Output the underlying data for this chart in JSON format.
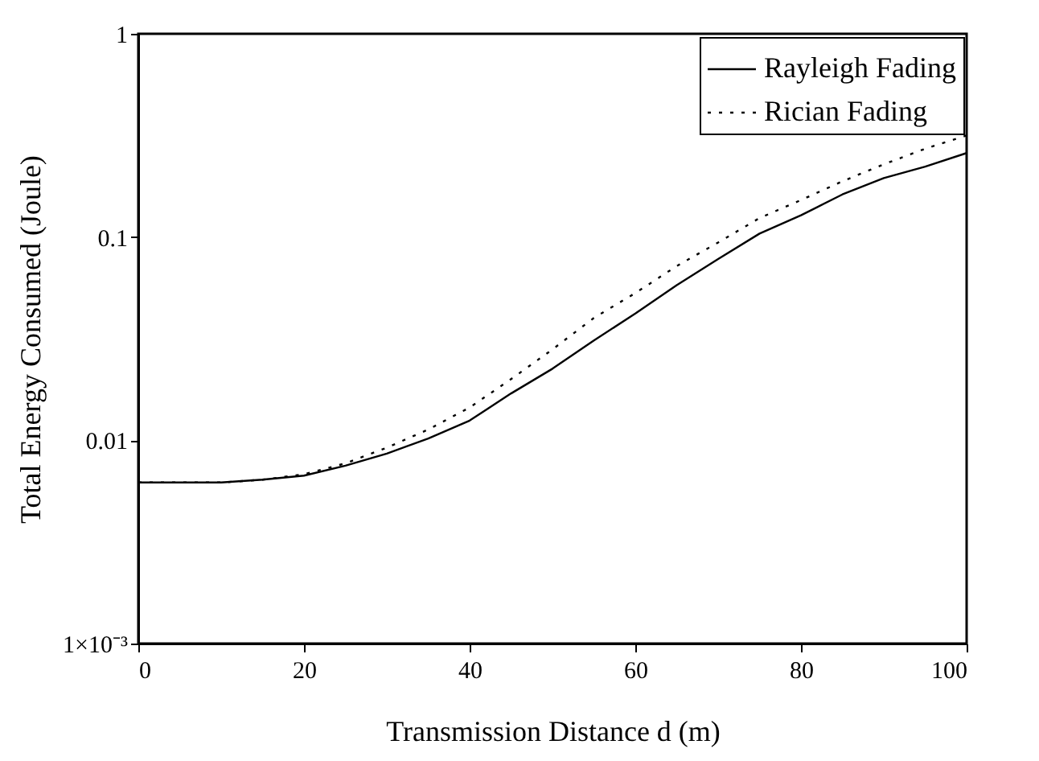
{
  "chart_data": {
    "type": "line",
    "xlabel": "Transmission Distance d (m)",
    "ylabel": "Total Energy Consumed (Joule)",
    "x": [
      0,
      10,
      15,
      20,
      25,
      30,
      35,
      40,
      45,
      50,
      55,
      60,
      65,
      70,
      75,
      80,
      85,
      90,
      95,
      100
    ],
    "series": [
      {
        "name": "Rayleigh Fading",
        "color": "#000000",
        "line_style": "solid",
        "values": [
          0.0062,
          0.0062,
          0.0064,
          0.0067,
          0.0075,
          0.0086,
          0.0102,
          0.0125,
          0.017,
          0.0225,
          0.031,
          0.042,
          0.058,
          0.078,
          0.104,
          0.128,
          0.162,
          0.195,
          0.222,
          0.259
        ]
      },
      {
        "name": "Rician Fading",
        "color": "#000000",
        "line_style": "dotted",
        "values": [
          0.0062,
          0.0062,
          0.0064,
          0.0068,
          0.0077,
          0.0092,
          0.0113,
          0.0145,
          0.02,
          0.028,
          0.04,
          0.053,
          0.072,
          0.094,
          0.124,
          0.152,
          0.188,
          0.228,
          0.272,
          0.316
        ]
      }
    ],
    "xlim": [
      0,
      100
    ],
    "xticks": [
      0,
      20,
      40,
      60,
      80,
      100
    ],
    "ylim": [
      0.001,
      1
    ],
    "yticks": [
      {
        "value": 0.001,
        "label": "1×10⁻³"
      },
      0.01,
      0.1,
      1
    ],
    "log": "y",
    "grid": false,
    "legend": "top right",
    "marker": "none"
  }
}
